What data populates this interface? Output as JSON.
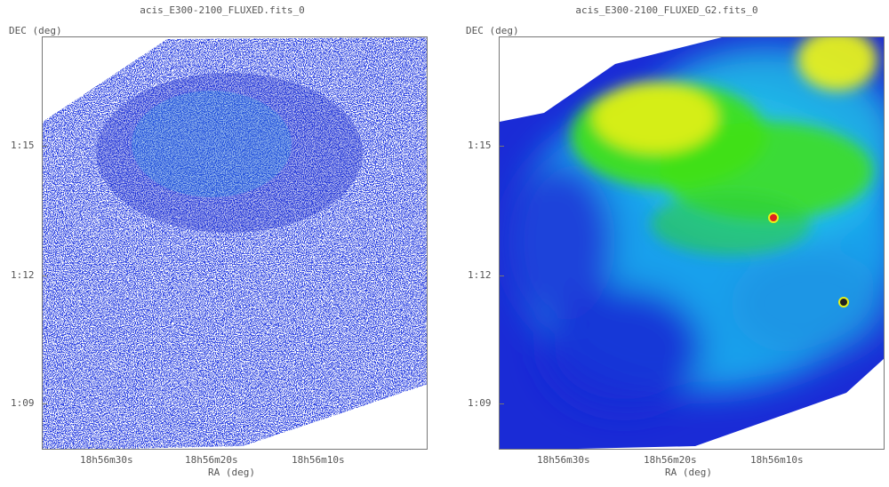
{
  "left_panel": {
    "title": "acis_E300-2100_FLUXED.fits_0",
    "y_label": "DEC (deg)",
    "x_label": "RA (deg)",
    "y_ticks": [
      "1:15",
      "1:12",
      "1:09"
    ],
    "x_ticks": [
      "18h56m30s",
      "18h56m20s",
      "18h56m10s"
    ]
  },
  "right_panel": {
    "title": "acis_E300-2100_FLUXED_G2.fits_0",
    "y_label": "DEC (deg)",
    "x_label": "RA (deg)",
    "y_ticks": [
      "1:15",
      "1:12",
      "1:09"
    ],
    "x_ticks": [
      "18h56m30s",
      "18h56m20s",
      "18h56m10s"
    ]
  },
  "colors": {
    "raw_blue": "#2233dd",
    "raw_cyan": "#22a0e6",
    "smooth_blue": "#1a2bd6",
    "smooth_cyan": "#1bb5f0",
    "smooth_green": "#3fe01a",
    "smooth_yellow": "#e6f01a",
    "source_red": "#e02020"
  }
}
